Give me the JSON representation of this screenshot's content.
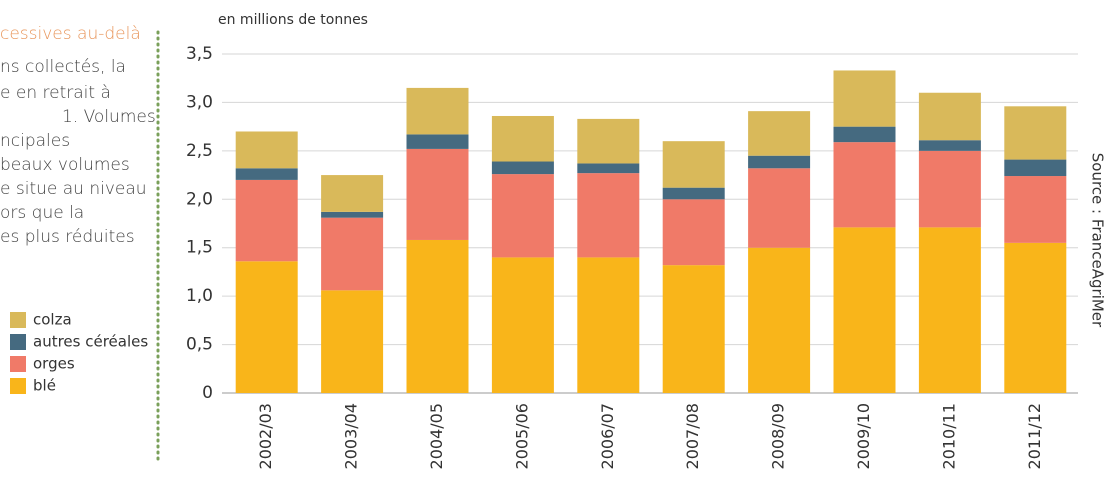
{
  "sidebar": {
    "lines": [
      "cessives au-delà",
      "ns collectés, la",
      "e en retrait à",
      "1. Volumes",
      "ncipales",
      "beaux volumes",
      "e situe au niveau",
      "ors que la",
      "es plus réduites"
    ]
  },
  "chart_data": {
    "type": "stacked_bar",
    "y_label": "en millions de tonnes",
    "source": "Source : FranceAgriMer",
    "categories": [
      "2002/03",
      "2003/04",
      "2004/05",
      "2005/06",
      "2006/07",
      "2007/08",
      "2008/09",
      "2009/10",
      "2010/11",
      "2011/12"
    ],
    "series": [
      {
        "name": "blé",
        "color": "#f9b51a",
        "values": [
          1.36,
          1.06,
          1.58,
          1.4,
          1.4,
          1.32,
          1.5,
          1.71,
          1.71,
          1.55
        ]
      },
      {
        "name": "orges",
        "color": "#f07a68",
        "values": [
          0.84,
          0.75,
          0.94,
          0.86,
          0.87,
          0.68,
          0.82,
          0.88,
          0.79,
          0.69
        ]
      },
      {
        "name": "autres céréales",
        "color": "#456a80",
        "values": [
          0.12,
          0.06,
          0.15,
          0.13,
          0.1,
          0.12,
          0.13,
          0.16,
          0.11,
          0.17
        ]
      },
      {
        "name": "colza",
        "color": "#d9b95a",
        "values": [
          0.38,
          0.38,
          0.48,
          0.47,
          0.46,
          0.48,
          0.46,
          0.58,
          0.49,
          0.55
        ]
      }
    ],
    "ylim": [
      0,
      3.5
    ],
    "yticks": [
      0,
      {
        "value": 0.5,
        "label": "0,5"
      },
      {
        "value": 1,
        "label": "1,0"
      },
      {
        "value": 1.5,
        "label": "1,5"
      },
      {
        "value": 2,
        "label": "2,0"
      },
      {
        "value": 2.5,
        "label": "2,5"
      },
      {
        "value": 3,
        "label": "3,0"
      },
      {
        "value": 3.5,
        "label": "3,5"
      }
    ],
    "grid": true
  }
}
